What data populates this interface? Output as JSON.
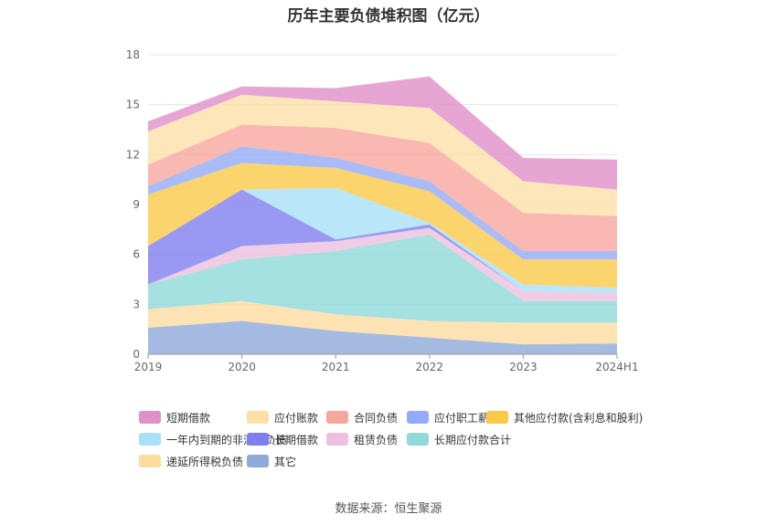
{
  "chart_data": {
    "type": "area",
    "title": "历年主要负债堆积图（亿元）",
    "source": "数据来源：恒生聚源",
    "categories": [
      "2019",
      "2020",
      "2021",
      "2022",
      "2023",
      "2024H1"
    ],
    "y_ticks": [
      "0",
      "3",
      "6",
      "9",
      "12",
      "15",
      "18"
    ],
    "ylim": [
      0,
      18
    ],
    "stacked": true,
    "grid": true,
    "legend_position": "bottom",
    "series": [
      {
        "name": "其它",
        "color": "#8fa9d8",
        "values": [
          1.6,
          2.0,
          1.4,
          1.0,
          0.6,
          0.65
        ]
      },
      {
        "name": "递延所得税负债",
        "color": "#fddca0",
        "values": [
          1.1,
          1.2,
          1.0,
          1.0,
          1.3,
          1.25
        ]
      },
      {
        "name": "长期应付款合计",
        "color": "#8fdad8",
        "values": [
          1.5,
          2.5,
          3.8,
          5.2,
          1.3,
          1.3
        ]
      },
      {
        "name": "租赁负债",
        "color": "#ecc0de",
        "values": [
          0.0,
          0.8,
          0.6,
          0.4,
          0.6,
          0.5
        ]
      },
      {
        "name": "长期借款",
        "color": "#7f7ef0",
        "values": [
          2.3,
          3.4,
          0.1,
          0.2,
          0.0,
          0.0
        ]
      },
      {
        "name": "一年内到期的非流动负债",
        "color": "#a8e0f8",
        "values": [
          0.0,
          0.0,
          3.1,
          0.1,
          0.4,
          0.3
        ]
      },
      {
        "name": "其他应付款(含利息和股利)",
        "color": "#fbc94a",
        "values": [
          3.1,
          1.6,
          1.2,
          1.9,
          1.5,
          1.7
        ]
      },
      {
        "name": "应付职工薪酬",
        "color": "#93abf6",
        "values": [
          0.5,
          1.0,
          0.6,
          0.6,
          0.5,
          0.5
        ]
      },
      {
        "name": "合同负债",
        "color": "#f7a69e",
        "values": [
          1.3,
          1.3,
          1.8,
          2.3,
          2.3,
          2.1
        ]
      },
      {
        "name": "应付账款",
        "color": "#fde0a8",
        "values": [
          2.0,
          1.8,
          1.6,
          2.1,
          1.9,
          1.6
        ]
      },
      {
        "name": "短期借款",
        "color": "#e08fc8",
        "values": [
          0.6,
          0.5,
          0.8,
          1.9,
          1.4,
          1.8
        ]
      }
    ]
  },
  "legend_order": [
    "短期借款",
    "应付账款",
    "合同负债",
    "应付职工薪酬",
    "其他应付款(含利息和股利)",
    "一年内到期的非流动负债",
    "长期借款",
    "租赁负债",
    "长期应付款合计",
    "递延所得税负债",
    "其它"
  ]
}
